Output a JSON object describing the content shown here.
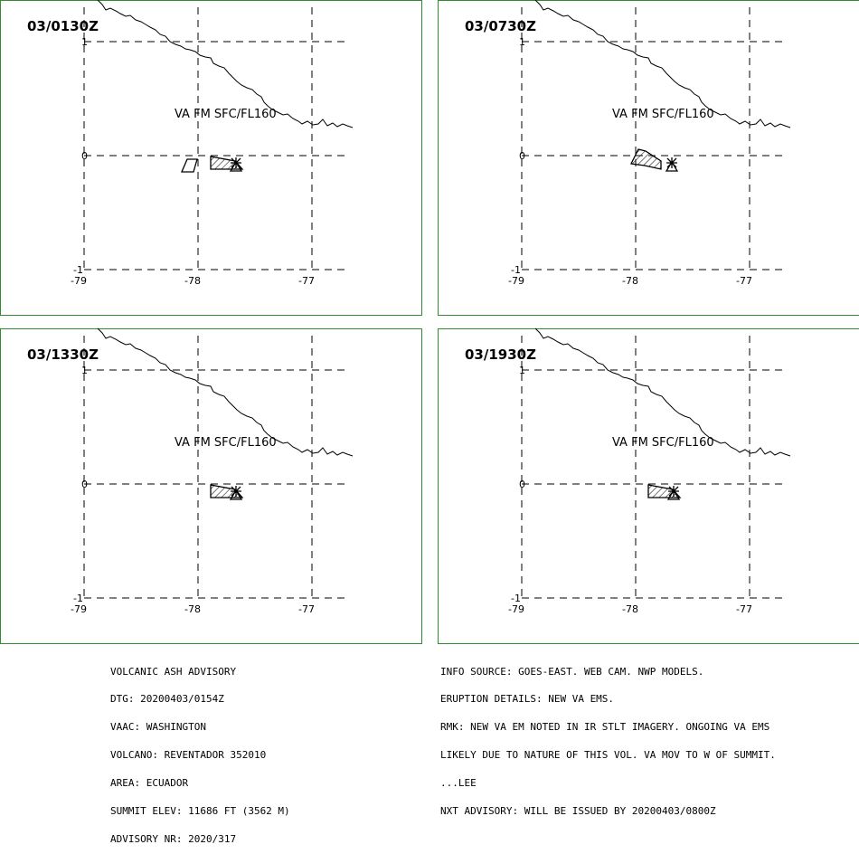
{
  "panels": [
    {
      "time": "03/0130Z",
      "label": "VA FM SFC/FL160",
      "clouds": 2
    },
    {
      "time": "03/0730Z",
      "label": "VA FM SFC/FL160",
      "clouds": 1
    },
    {
      "time": "03/1330Z",
      "label": "VA FM SFC/FL160",
      "clouds": 1
    },
    {
      "time": "03/1930Z",
      "label": "VA FM SFC/FL160",
      "clouds": 1
    }
  ],
  "axes": {
    "lon_ticks": [
      "-79",
      "-78",
      "-77"
    ],
    "lat_ticks": [
      "1",
      "0",
      "-1"
    ]
  },
  "advisory_left": [
    "VOLCANIC ASH ADVISORY",
    "DTG: 20200403/0154Z",
    "VAAC: WASHINGTON",
    "VOLCANO: REVENTADOR 352010",
    "AREA: ECUADOR",
    "SUMMIT ELEV: 11686 FT (3562 M)",
    "ADVISORY NR: 2020/317"
  ],
  "advisory_right": [
    "INFO SOURCE: GOES-EAST. WEB CAM. NWP MODELS.",
    "ERUPTION DETAILS: NEW VA EMS.",
    "RMK: NEW VA EM NOTED IN IR STLT IMAGERY. ONGOING VA EMS",
    "LIKELY DUE TO NATURE OF THIS VOL. VA MOV TO W OF SUMMIT.",
    "...LEE",
    "NXT ADVISORY: WILL BE ISSUED BY 20200403/0800Z"
  ]
}
